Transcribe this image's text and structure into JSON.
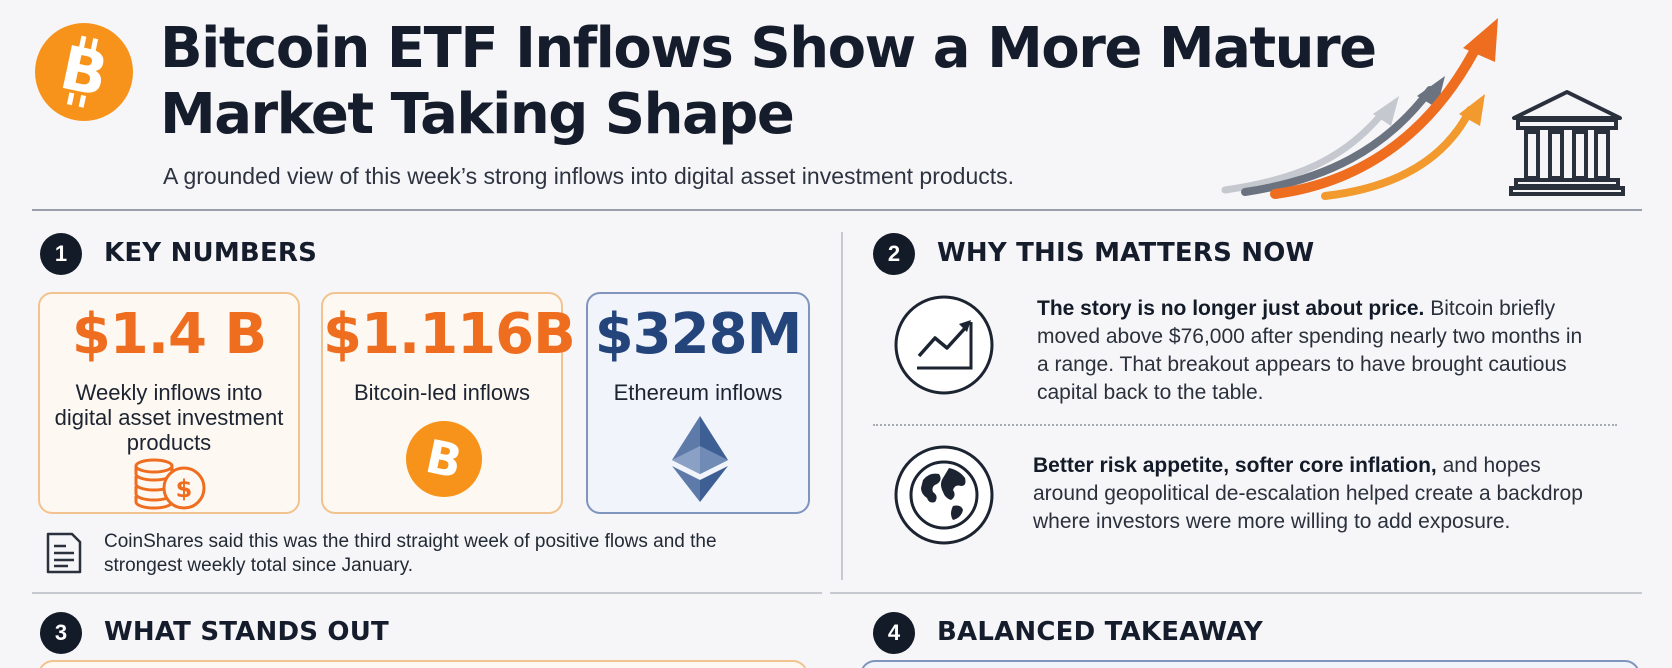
{
  "header": {
    "title_line1": "Bitcoin ETF Inflows Show a More Mature",
    "title_line2": "Market Taking Shape",
    "subtitle": "A grounded view of this week’s strong inflows into digital asset investment products."
  },
  "sections": [
    {
      "number": "1",
      "title": "KEY NUMBERS"
    },
    {
      "number": "2",
      "title": "WHY THIS MATTERS NOW"
    },
    {
      "number": "3",
      "title": "WHAT STANDS OUT"
    },
    {
      "number": "4",
      "title": "BALANCED TAKEAWAY"
    }
  ],
  "key_numbers": [
    {
      "value": "$1.4 B",
      "label": "Weekly inflows into digital asset investment products",
      "icon": "coins-dollar-icon"
    },
    {
      "value": "$1.116B",
      "label": "Bitcoin-led inflows",
      "icon": "bitcoin-icon"
    },
    {
      "value": "$328M",
      "label": "Ethereum inflows",
      "icon": "ethereum-icon"
    }
  ],
  "note": "CoinShares said this was the third straight week of positive flows and the strongest weekly total since January.",
  "why": [
    {
      "bold": "The story is no longer just about price.",
      "text": " Bitcoin briefly moved above $76,000 after spending nearly two months in a range. That breakout appears to have brought cautious capital back to the table.",
      "icon": "trend-chart-icon"
    },
    {
      "bold": "Better risk appetite, softer core inflation,",
      "text": " and hopes around geopolitical de-escalation helped create a backdrop where investors were more willing to add exposure.",
      "icon": "globe-icon"
    }
  ],
  "colors": {
    "orange": "#ee6d1f",
    "navy": "#24457c",
    "dark": "#151c2b",
    "card_orange_border": "#f2c38e",
    "card_blue_border": "#7f95be"
  }
}
